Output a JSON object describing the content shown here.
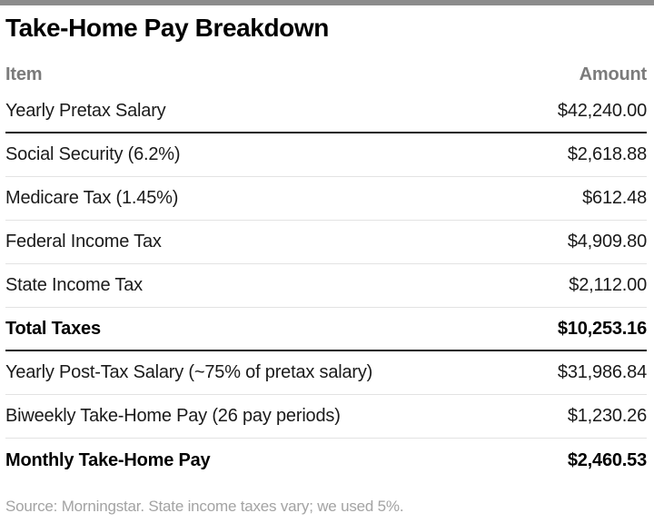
{
  "page": {
    "title": "Take-Home Pay Breakdown",
    "source_note": "Source: Morningstar. State income taxes vary; we used 5%."
  },
  "chart_data": {
    "type": "table",
    "title": "Take-Home Pay Breakdown",
    "columns": [
      "Item",
      "Amount"
    ],
    "rows": [
      {
        "item": "Yearly Pretax Salary",
        "amount": "$42,240.00",
        "value": 42240.0,
        "bold": false,
        "divider_below": "dark"
      },
      {
        "item": "Social Security (6.2%)",
        "amount": "$2,618.88",
        "value": 2618.88,
        "bold": false,
        "divider_below": "light"
      },
      {
        "item": "Medicare Tax (1.45%)",
        "amount": "$612.48",
        "value": 612.48,
        "bold": false,
        "divider_below": "light"
      },
      {
        "item": "Federal Income Tax",
        "amount": "$4,909.80",
        "value": 4909.8,
        "bold": false,
        "divider_below": "light"
      },
      {
        "item": "State Income Tax",
        "amount": "$2,112.00",
        "value": 2112.0,
        "bold": false,
        "divider_below": "light"
      },
      {
        "item": "Total Taxes",
        "amount": "$10,253.16",
        "value": 10253.16,
        "bold": true,
        "divider_below": "dark"
      },
      {
        "item": "Yearly Post-Tax Salary (~75% of pretax salary)",
        "amount": "$31,986.84",
        "value": 31986.84,
        "bold": false,
        "divider_below": "light"
      },
      {
        "item": "Biweekly Take-Home Pay (26 pay periods)",
        "amount": "$1,230.26",
        "value": 1230.26,
        "bold": false,
        "divider_below": "light"
      },
      {
        "item": "Monthly Take-Home Pay",
        "amount": "$2,460.53",
        "value": 2460.53,
        "bold": true,
        "divider_below": "none"
      }
    ],
    "source": "Source: Morningstar. State income taxes vary; we used 5%."
  },
  "colors": {
    "top_bar": "#8c8c8c",
    "title_text": "#000000",
    "header_text": "#7b7b7b",
    "row_text": "#1a1a1a",
    "divider_dark": "#191919",
    "divider_light": "#e3e3e3",
    "source_text": "#a3a3a3",
    "background": "#ffffff"
  }
}
